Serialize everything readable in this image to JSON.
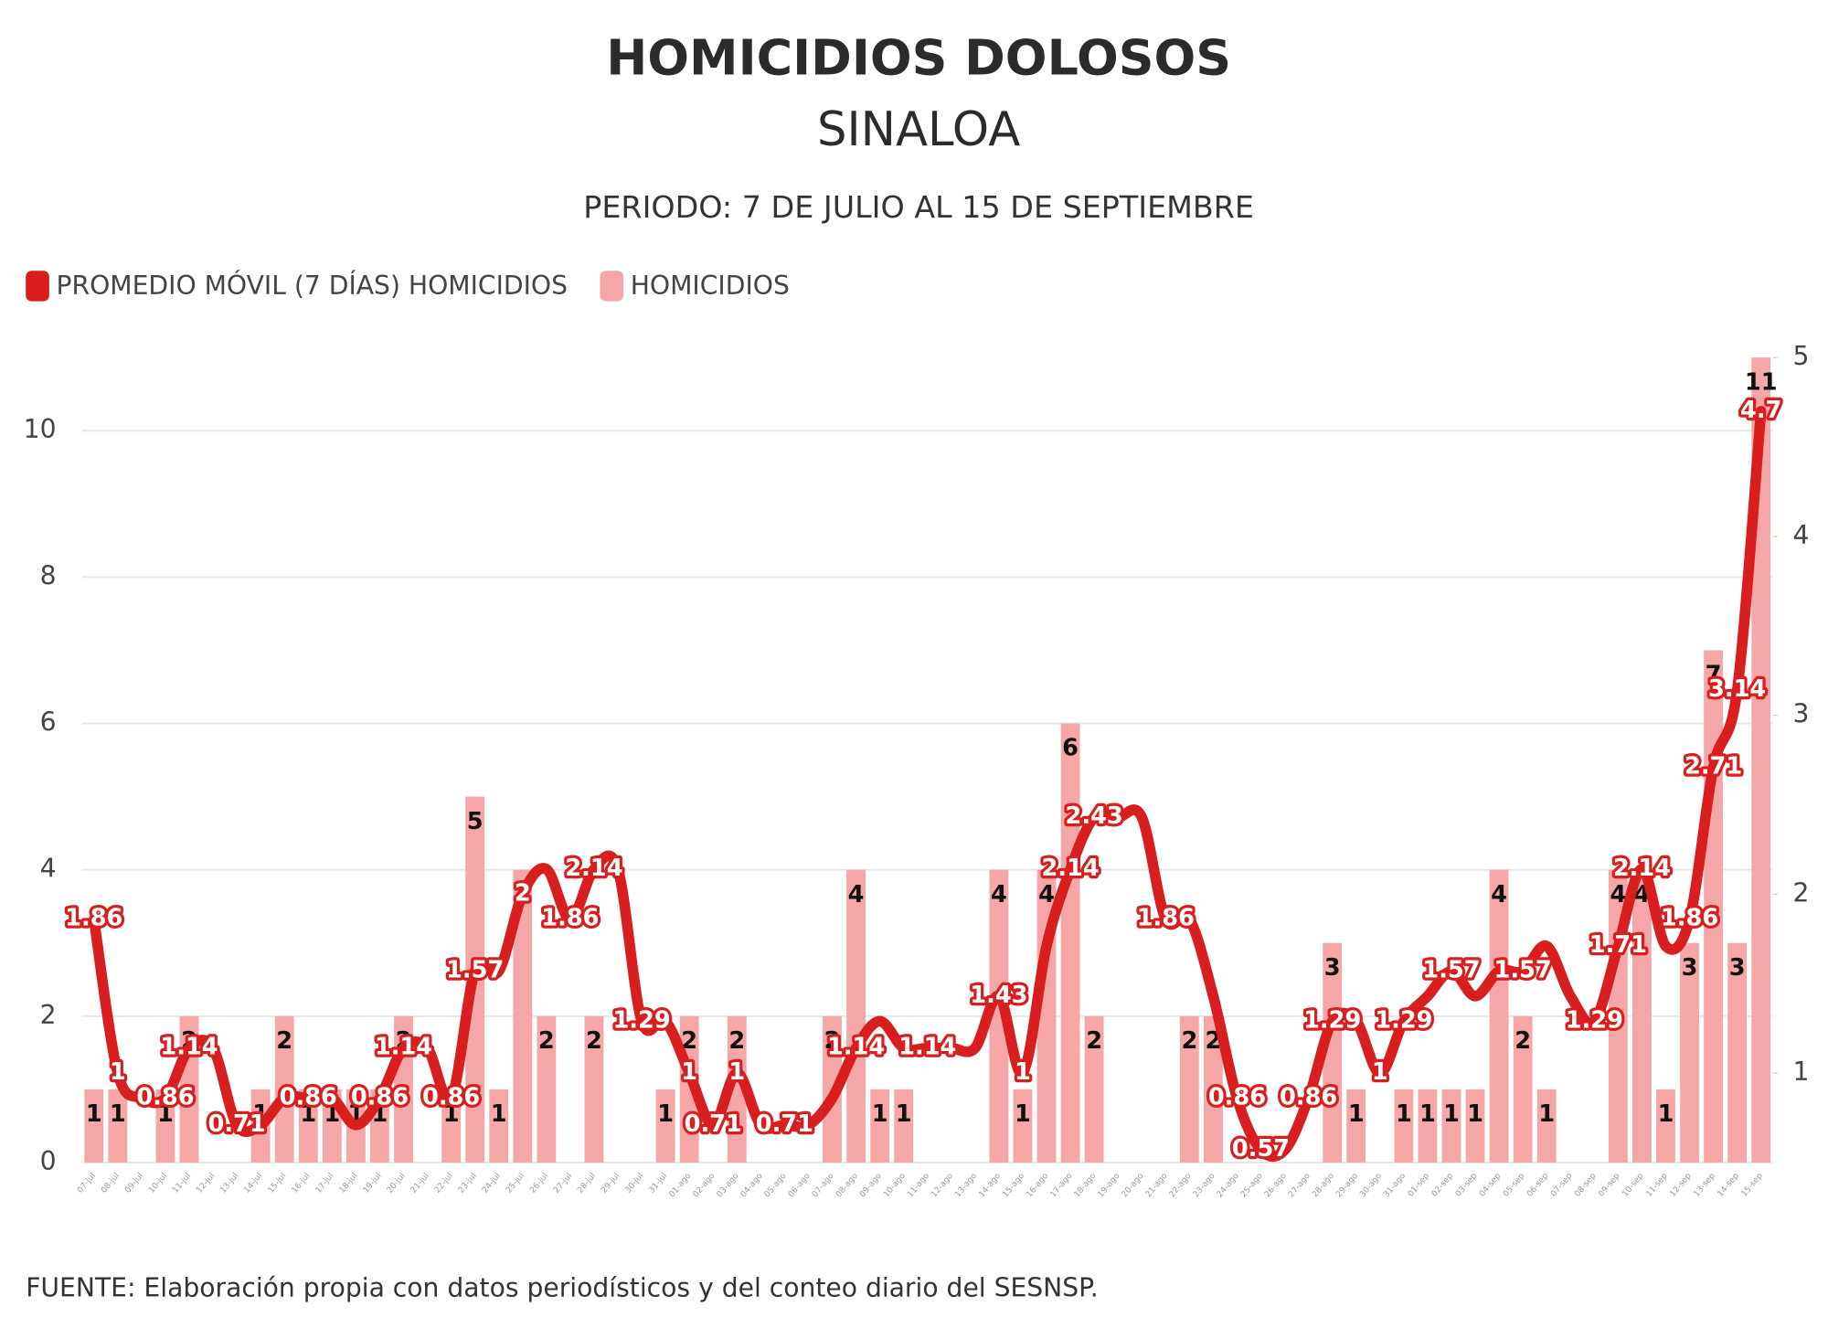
{
  "chart_data": {
    "type": "bar_line",
    "title": "HOMICIDIOS DOLOSOS",
    "subtitle": "SINALOA",
    "period": "PERIODO: 7 DE JULIO AL 15 DE SEPTIEMBRE",
    "source": "FUENTE: Elaboración propia con datos periodísticos y del conteo diario del SESNSP.",
    "categories": [
      "07-jul",
      "08-jul",
      "09-jul",
      "10-jul",
      "11-jul",
      "12-jul",
      "13-jul",
      "14-jul",
      "15-jul",
      "16-jul",
      "17-jul",
      "18-jul",
      "19-jul",
      "20-jul",
      "21-jul",
      "22-jul",
      "23-jul",
      "24-jul",
      "25-jul",
      "26-jul",
      "27-jul",
      "28-jul",
      "29-jul",
      "30-jul",
      "31-jul",
      "01-ago",
      "02-ago",
      "03-ago",
      "04-ago",
      "05-ago",
      "06-ago",
      "07-ago",
      "08-ago",
      "09-ago",
      "10-ago",
      "11-ago",
      "12-ago",
      "13-ago",
      "14-ago",
      "15-ago",
      "16-ago",
      "17-ago",
      "18-ago",
      "19-ago",
      "20-ago",
      "21-ago",
      "22-ago",
      "23-ago",
      "24-ago",
      "25-ago",
      "26-ago",
      "27-ago",
      "28-ago",
      "29-ago",
      "30-ago",
      "31-ago",
      "01-sep",
      "02-sep",
      "03-sep",
      "04-sep",
      "05-sep",
      "06-sep",
      "07-sep",
      "08-sep",
      "09-sep",
      "10-sep",
      "11-sep",
      "12-sep",
      "13-sep",
      "14-sep",
      "15-sep"
    ],
    "series": [
      {
        "name": "PROMEDIO MÓVIL (7 DÍAS) HOMICIDIOS",
        "type": "line",
        "axis": "y2",
        "color": "#d81e1e",
        "values": [
          1.86,
          1,
          0.86,
          0.86,
          1.14,
          1.14,
          0.71,
          0.71,
          0.86,
          0.86,
          0.86,
          0.71,
          0.86,
          1.14,
          1.14,
          0.86,
          1.57,
          1.57,
          2,
          2.14,
          1.86,
          2.14,
          2.14,
          1.29,
          1.29,
          1,
          0.71,
          1,
          0.71,
          0.71,
          0.71,
          0.86,
          1.14,
          1.29,
          1.14,
          1.14,
          1.14,
          1.14,
          1.43,
          1,
          1.71,
          2.14,
          2.43,
          2.43,
          2.43,
          1.86,
          1.86,
          1.43,
          0.86,
          0.57,
          0.57,
          0.86,
          1.29,
          1.29,
          1,
          1.29,
          1.43,
          1.57,
          1.43,
          1.57,
          1.57,
          1.71,
          1.43,
          1.29,
          1.71,
          2.14,
          1.71,
          1.86,
          2.71,
          3.14,
          4.7
        ],
        "value_labels": [
          "1.86",
          "1",
          null,
          "0.86",
          "1.14",
          null,
          "0.71",
          null,
          null,
          "0.86",
          null,
          null,
          "0.86",
          "1.14",
          null,
          "0.86",
          "1.57",
          null,
          "2",
          null,
          "1.86",
          "2.14",
          null,
          "1.29",
          null,
          "1",
          "0.71",
          "1",
          null,
          "0.71",
          null,
          null,
          "1.14",
          null,
          null,
          "1.14",
          null,
          null,
          "1.43",
          "1",
          null,
          "2.14",
          "2.43",
          null,
          null,
          "1.86",
          null,
          null,
          "0.86",
          "0.57",
          null,
          "0.86",
          "1.29",
          null,
          "1",
          "1.29",
          null,
          "1.57",
          null,
          null,
          "1.57",
          null,
          null,
          "1.29",
          "1.71",
          "2.14",
          null,
          "1.86",
          "2.71",
          "3.14",
          "4.7"
        ]
      },
      {
        "name": "HOMICIDIOS",
        "type": "bar",
        "color": "#f5a7a7",
        "values": [
          1,
          1,
          0,
          1,
          2,
          0,
          0,
          1,
          2,
          1,
          1,
          1,
          1,
          2,
          0,
          1,
          5,
          1,
          4,
          2,
          0,
          2,
          0,
          0,
          1,
          2,
          0,
          2,
          0,
          0,
          0,
          2,
          4,
          1,
          1,
          0,
          0,
          0,
          4,
          1,
          4,
          6,
          2,
          0,
          0,
          0,
          2,
          2,
          0,
          0,
          0,
          0,
          3,
          1,
          0,
          1,
          1,
          1,
          1,
          4,
          2,
          1,
          0,
          0,
          4,
          4,
          1,
          3,
          7,
          3,
          11
        ]
      }
    ],
    "ylim": [
      0,
      11
    ],
    "yticks": [
      0,
      2,
      4,
      6,
      8,
      10
    ],
    "y2lim": [
      0.5,
      5
    ],
    "y2ticks": [
      1,
      2,
      3,
      4,
      5
    ],
    "grid": true,
    "legend": "top-left"
  }
}
